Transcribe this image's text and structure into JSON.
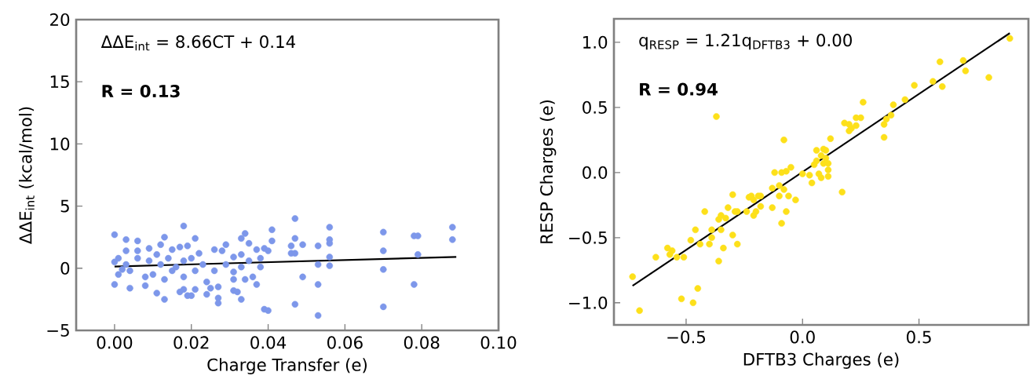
{
  "chart_data": [
    {
      "type": "scatter",
      "xlabel": "Charge Transfer (e)",
      "ylabel": "ΔΔE$_{int}$ (kcal/mol)",
      "marker": "circle",
      "annotations": [
        "ΔΔE$_{int}$ = 8.66CT + 0.14",
        "R = 0.13"
      ],
      "xlim": [
        -0.01,
        0.1
      ],
      "ylim": [
        -5,
        20
      ],
      "xticks": [
        {
          "value": 0,
          "label": "0.00"
        },
        {
          "value": 0.02,
          "label": "0.02"
        },
        {
          "value": 0.04,
          "label": "0.04"
        },
        {
          "value": 0.06,
          "label": "0.06"
        },
        {
          "value": 0.08,
          "label": "0.08"
        },
        {
          "value": 0.1,
          "label": "0.10"
        }
      ],
      "yticks": [
        {
          "value": -5,
          "label": "−5"
        },
        0,
        5,
        10,
        15,
        20
      ],
      "series": [
        {
          "type": "scatter",
          "color": "#7d97ea",
          "x": [
            0.0,
            0.003,
            0.006,
            0.018,
            0.021,
            0.013,
            0.029,
            0.033,
            0.034,
            0.035,
            0.041,
            0.041,
            0.047,
            0.047,
            0.049,
            0.046,
            0.046,
            0.047,
            0.053,
            0.053,
            0.053,
            0.053,
            0.056,
            0.056,
            0.056,
            0.056,
            0.056,
            0.049,
            0.047,
            0.039,
            0.04,
            0.07,
            0.07,
            0.07,
            0.07,
            0.078,
            0.079,
            0.079,
            0.078,
            0.088,
            0.088,
            0.038,
            0.037,
            0.036,
            0.034,
            0.033,
            0.032,
            0.031,
            0.031,
            0.031,
            0.027,
            0.027,
            0.027,
            0.025,
            0.024,
            0.024,
            0.021,
            0.02,
            0.019,
            0.018,
            0.017,
            0.013,
            0.011,
            0.008,
            0.004,
            0.0,
            0.039,
            0.04,
            0.037,
            0.033,
            0.031,
            0.028,
            0.026,
            0.022,
            0.019,
            0.017,
            0.015,
            0.012,
            0.009,
            0.006,
            0.003,
            0.009,
            0.006,
            0.008,
            0.01,
            0.013,
            0.015,
            0.016,
            0.018,
            0.021,
            0.023,
            0.026,
            0.029,
            0.001,
            0.001,
            0.003,
            0.004,
            0.0,
            0.002,
            0.011,
            0.014,
            0.012,
            0.02,
            0.018,
            0.035,
            0.038,
            0.033
          ],
          "values": [
            2.7,
            2.3,
            2.2,
            3.4,
            2.4,
            2.5,
            1.9,
            2.4,
            2.8,
            2.0,
            3.1,
            2.2,
            4.0,
            2.4,
            1.9,
            1.8,
            1.2,
            1.2,
            1.8,
            0.3,
            -1.3,
            -3.8,
            3.3,
            2.3,
            2.0,
            0.9,
            0.2,
            -0.7,
            -2.9,
            -3.3,
            -3.4,
            2.9,
            1.4,
            -0.1,
            -3.1,
            2.6,
            2.6,
            1.1,
            -1.3,
            3.3,
            2.3,
            0.1,
            -1.3,
            -0.7,
            -0.9,
            -2.5,
            -1.9,
            -1.8,
            -0.3,
            -0.9,
            -1.5,
            -2.8,
            -2.4,
            -1.6,
            -2.1,
            -1.1,
            -1.7,
            -2.2,
            -2.2,
            -1.7,
            -1.9,
            -2.5,
            -2.0,
            -1.4,
            -1.6,
            -1.3,
            1.6,
            1.4,
            1.5,
            1.1,
            0.9,
            1.4,
            1.5,
            1.2,
            1.8,
            1.7,
            1.5,
            1.9,
            1.6,
            1.4,
            1.4,
            0.6,
            0.8,
            -0.7,
            -0.5,
            -0.9,
            -0.2,
            0.1,
            -0.7,
            -0.2,
            0.3,
            -0.2,
            0.3,
            0.8,
            -0.5,
            0.3,
            -0.2,
            0.5,
            -0.1,
            1.1,
            0.8,
            0.3,
            0.8,
            0.6,
            0.6,
            0.8,
            0.1
          ]
        },
        {
          "type": "line",
          "color": "#000000",
          "marker": "none",
          "line_style": "solid",
          "x": [
            0,
            0.089
          ],
          "values": [
            0.14,
            0.91
          ]
        }
      ]
    },
    {
      "type": "scatter",
      "xlabel": "DFTB3 Charges (e)",
      "ylabel": "RESP Charges (e)",
      "marker": "circle",
      "annotations": [
        "q$_{RESP}$ = 1.21q$_{DFTB3}$ + 0.00",
        "R = 0.94"
      ],
      "xlim": [
        -0.81,
        0.97
      ],
      "ylim": [
        -1.17,
        1.18
      ],
      "xticks": [
        {
          "value": -0.5,
          "label": "−0.5"
        },
        {
          "value": 0,
          "label": "0.0"
        },
        0.5
      ],
      "yticks": [
        {
          "value": -1,
          "label": "−1.0"
        },
        {
          "value": -0.5,
          "label": "−0.5"
        },
        {
          "value": 0,
          "label": "0.0"
        },
        0.5,
        {
          "value": 1,
          "label": "1.0"
        }
      ],
      "series": [
        {
          "type": "scatter",
          "color": "#fde01a",
          "x": [
            -0.73,
            -0.7,
            -0.63,
            -0.58,
            -0.56,
            -0.57,
            -0.54,
            -0.51,
            -0.52,
            -0.48,
            -0.47,
            -0.45,
            -0.46,
            -0.44,
            -0.42,
            -0.4,
            -0.39,
            -0.39,
            -0.37,
            -0.36,
            -0.36,
            -0.35,
            -0.35,
            -0.34,
            -0.33,
            -0.32,
            -0.3,
            -0.3,
            -0.29,
            -0.28,
            -0.28,
            -0.24,
            -0.23,
            -0.22,
            -0.21,
            -0.21,
            -0.2,
            -0.19,
            -0.18,
            -0.18,
            -0.13,
            -0.13,
            -0.12,
            -0.1,
            -0.1,
            -0.09,
            -0.09,
            -0.08,
            -0.08,
            -0.07,
            -0.07,
            -0.06,
            -0.05,
            -0.03,
            0.0,
            0.03,
            0.04,
            0.05,
            0.06,
            0.06,
            0.07,
            0.08,
            0.09,
            0.09,
            0.1,
            0.1,
            0.11,
            0.11,
            0.12,
            0.11,
            0.08,
            0.17,
            0.18,
            0.2,
            0.2,
            0.21,
            0.23,
            0.23,
            0.25,
            0.26,
            0.35,
            0.35,
            0.36,
            0.38,
            0.39,
            0.44,
            0.48,
            0.56,
            0.59,
            0.6,
            0.69,
            0.7,
            0.8,
            0.89
          ],
          "values": [
            -0.8,
            -1.06,
            -0.65,
            -0.58,
            -0.6,
            -0.63,
            -0.65,
            -0.65,
            -0.97,
            -0.52,
            -1.0,
            -0.89,
            -0.44,
            -0.55,
            -0.3,
            -0.55,
            -0.44,
            -0.5,
            0.43,
            -0.36,
            -0.68,
            -0.33,
            -0.44,
            -0.58,
            -0.35,
            -0.27,
            -0.17,
            -0.48,
            -0.3,
            -0.55,
            -0.3,
            -0.3,
            -0.19,
            -0.18,
            -0.33,
            -0.21,
            -0.3,
            -0.18,
            -0.18,
            -0.26,
            -0.27,
            -0.12,
            0.0,
            -0.18,
            -0.1,
            0.0,
            -0.39,
            0.25,
            -0.13,
            -0.3,
            0.01,
            -0.18,
            0.04,
            -0.21,
            -0.01,
            -0.02,
            -0.08,
            0.06,
            0.09,
            0.17,
            -0.01,
            0.13,
            0.07,
            0.18,
            0.11,
            0.17,
            0.07,
            -0.03,
            0.26,
            0.02,
            -0.04,
            -0.15,
            0.38,
            0.32,
            0.37,
            0.34,
            0.42,
            0.36,
            0.42,
            0.54,
            0.27,
            0.37,
            0.41,
            0.44,
            0.52,
            0.56,
            0.67,
            0.7,
            0.85,
            0.66,
            0.86,
            0.78,
            0.73,
            1.03
          ]
        },
        {
          "type": "line",
          "color": "#000000",
          "marker": "none",
          "line_style": "solid",
          "x": [
            -0.73,
            0.89
          ],
          "values": [
            -0.87,
            1.07
          ]
        }
      ]
    }
  ]
}
